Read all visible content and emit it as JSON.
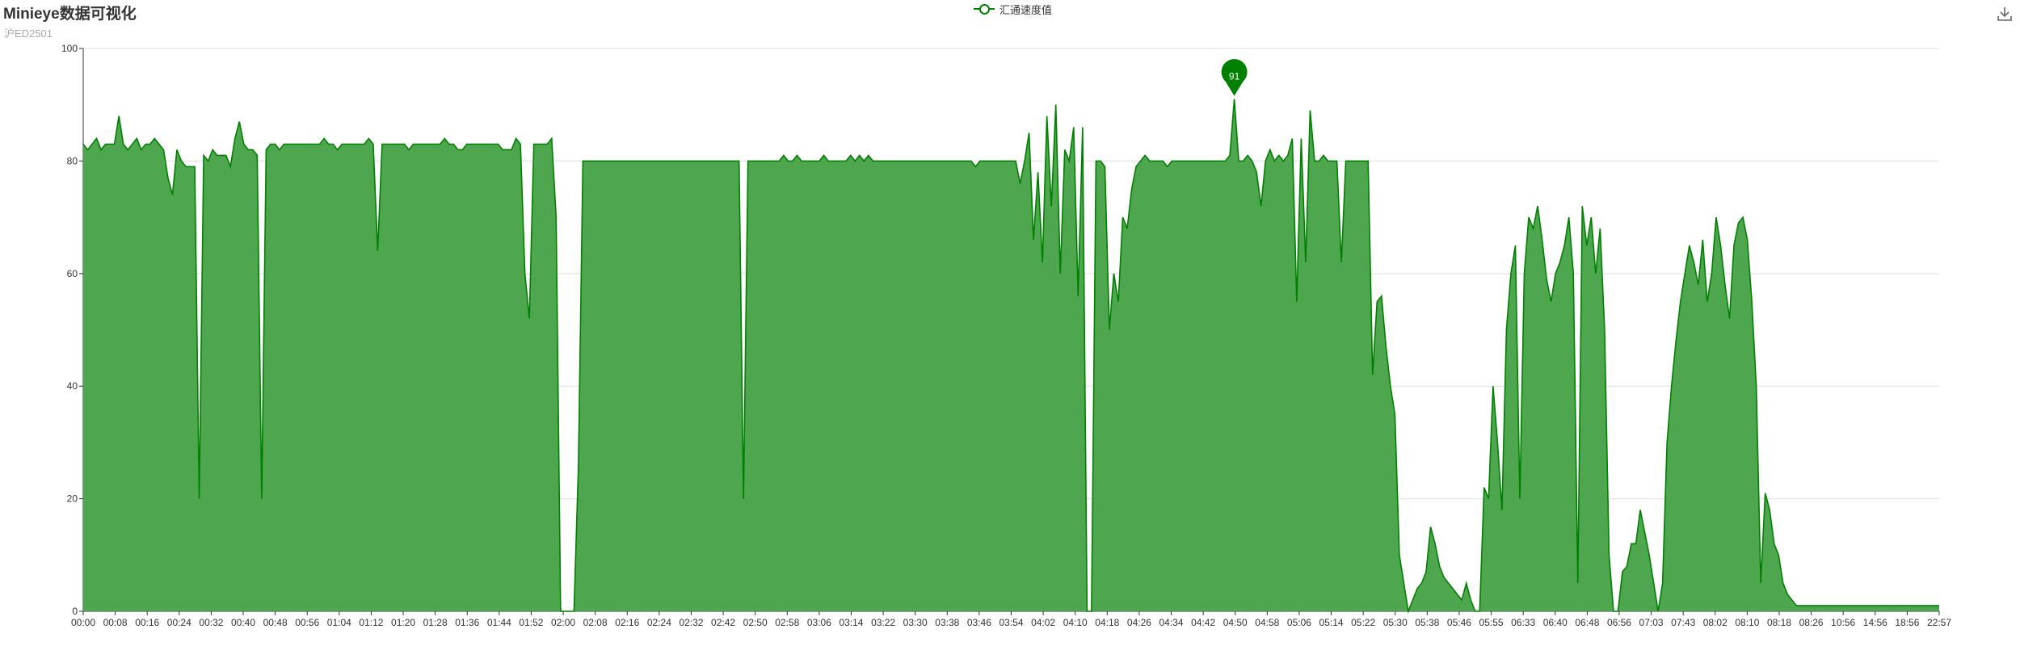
{
  "header": {
    "title": "Minieye数据可视化",
    "subtitle": "沪ED2501"
  },
  "legend": {
    "label": "汇通速度值",
    "color": "#008000"
  },
  "toolbox": {
    "icon": "download-icon"
  },
  "colors": {
    "line": "#008000",
    "area": "#4ea64e",
    "grid": "#e0e0e0",
    "axis": "#333333"
  },
  "chart_data": {
    "type": "area",
    "title": "Minieye数据可视化",
    "subtitle": "沪ED2501",
    "series": [
      {
        "name": "汇通速度值"
      }
    ],
    "ylim": [
      0,
      100
    ],
    "yticks": [
      0,
      20,
      40,
      60,
      80,
      100
    ],
    "xlabels": [
      "00:00",
      "00:08",
      "00:16",
      "00:24",
      "00:32",
      "00:40",
      "00:48",
      "00:56",
      "01:04",
      "01:12",
      "01:20",
      "01:28",
      "01:36",
      "01:44",
      "01:52",
      "02:00",
      "02:08",
      "02:16",
      "02:24",
      "02:32",
      "02:42",
      "02:50",
      "02:58",
      "03:06",
      "03:14",
      "03:22",
      "03:30",
      "03:38",
      "03:46",
      "03:54",
      "04:02",
      "04:10",
      "04:18",
      "04:26",
      "04:34",
      "04:42",
      "04:50",
      "04:58",
      "05:06",
      "05:14",
      "05:22",
      "05:30",
      "05:38",
      "05:46",
      "05:55",
      "06:33",
      "06:40",
      "06:48",
      "06:56",
      "07:03",
      "07:43",
      "08:02",
      "08:10",
      "08:18",
      "08:26",
      "10:56",
      "14:56",
      "18:56",
      "22:57"
    ],
    "values": [
      83,
      82,
      83,
      84,
      82,
      83,
      83,
      83,
      88,
      83,
      82,
      83,
      84,
      82,
      83,
      83,
      84,
      83,
      82,
      77,
      74,
      82,
      80,
      79,
      79,
      79,
      20,
      81,
      80,
      82,
      81,
      81,
      81,
      79,
      84,
      87,
      83,
      82,
      82,
      81,
      20,
      82,
      83,
      83,
      82,
      83,
      83,
      83,
      83,
      83,
      83,
      83,
      83,
      83,
      84,
      83,
      83,
      82,
      83,
      83,
      83,
      83,
      83,
      83,
      84,
      83,
      64,
      83,
      83,
      83,
      83,
      83,
      83,
      82,
      83,
      83,
      83,
      83,
      83,
      83,
      83,
      84,
      83,
      83,
      82,
      82,
      83,
      83,
      83,
      83,
      83,
      83,
      83,
      83,
      82,
      82,
      82,
      84,
      83,
      60,
      52,
      83,
      83,
      83,
      83,
      84,
      70,
      0,
      0,
      0,
      0,
      26,
      80,
      80,
      80,
      80,
      80,
      80,
      80,
      80,
      80,
      80,
      80,
      80,
      80,
      80,
      80,
      80,
      80,
      80,
      80,
      80,
      80,
      80,
      80,
      80,
      80,
      80,
      80,
      80,
      80,
      80,
      80,
      80,
      80,
      80,
      80,
      80,
      20,
      80,
      80,
      80,
      80,
      80,
      80,
      80,
      80,
      81,
      80,
      80,
      81,
      80,
      80,
      80,
      80,
      80,
      81,
      80,
      80,
      80,
      80,
      80,
      81,
      80,
      81,
      80,
      81,
      80,
      80,
      80,
      80,
      80,
      80,
      80,
      80,
      80,
      80,
      80,
      80,
      80,
      80,
      80,
      80,
      80,
      80,
      80,
      80,
      80,
      80,
      80,
      79,
      80,
      80,
      80,
      80,
      80,
      80,
      80,
      80,
      80,
      76,
      80,
      85,
      66,
      78,
      62,
      88,
      72,
      90,
      60,
      82,
      80,
      86,
      56,
      86,
      0,
      0,
      80,
      80,
      79,
      50,
      60,
      55,
      70,
      68,
      75,
      79,
      80,
      81,
      80,
      80,
      80,
      80,
      79,
      80,
      80,
      80,
      80,
      80,
      80,
      80,
      80,
      80,
      80,
      80,
      80,
      80,
      81,
      91,
      80,
      80,
      81,
      80,
      78,
      72,
      80,
      82,
      80,
      81,
      80,
      81,
      84,
      55,
      84,
      62,
      89,
      80,
      80,
      81,
      80,
      80,
      80,
      62,
      80,
      80,
      80,
      80,
      80,
      80,
      42,
      55,
      56,
      47,
      40,
      35,
      10,
      5,
      0,
      2,
      4,
      5,
      7,
      15,
      12,
      8,
      6,
      5,
      4,
      3,
      2,
      5,
      2,
      0,
      0,
      22,
      20,
      40,
      30,
      18,
      50,
      60,
      65,
      20,
      60,
      70,
      68,
      72,
      66,
      59,
      55,
      60,
      62,
      65,
      70,
      60,
      5,
      72,
      65,
      70,
      60,
      68,
      50,
      10,
      0,
      0,
      7,
      8,
      12,
      12,
      18,
      14,
      10,
      5,
      0,
      5,
      30,
      40,
      48,
      55,
      60,
      65,
      62,
      58,
      66,
      55,
      60,
      70,
      65,
      58,
      52,
      65,
      69,
      70,
      66,
      55,
      40,
      5,
      21,
      18,
      12,
      10,
      5,
      3,
      2,
      1,
      1,
      1,
      1,
      1,
      1,
      1,
      1,
      1,
      1,
      1,
      1,
      1,
      1,
      1,
      1,
      1,
      1,
      1,
      1,
      1,
      1,
      1,
      1,
      1,
      1,
      1,
      1,
      1,
      1,
      1,
      1,
      1
    ],
    "markPoint": {
      "label": "91",
      "value": 91
    },
    "grid": true,
    "legend_position": "top-center"
  }
}
